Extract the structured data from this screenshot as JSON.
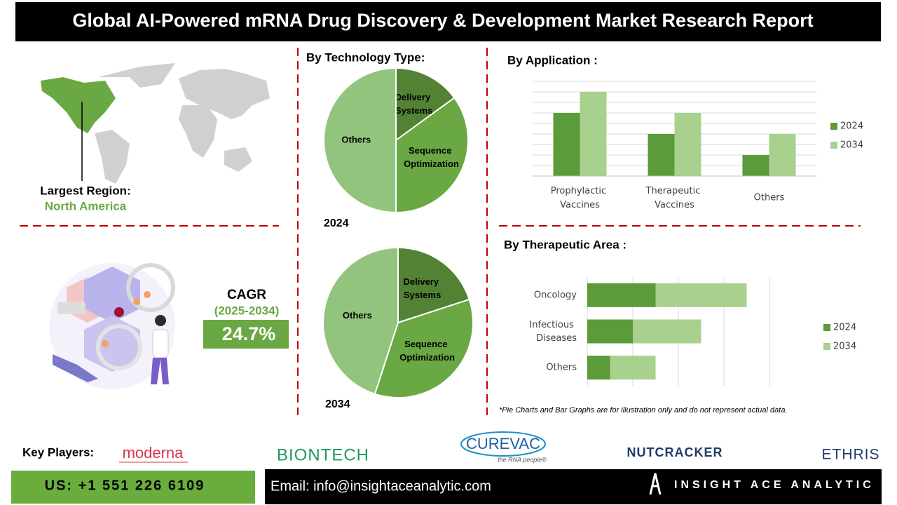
{
  "header": {
    "title": "Global AI-Powered mRNA Drug Discovery & Development Market Research Report"
  },
  "region": {
    "label": "Largest Region:",
    "value": "North America"
  },
  "cagr": {
    "label": "CAGR",
    "period": "(2025-2034)",
    "value": "24.7%"
  },
  "chart_data": [
    {
      "type": "pie",
      "title": "By Technology Type:",
      "caption": "2024",
      "categories": [
        "Delivery Systems",
        "Sequence Optimization",
        "Others"
      ],
      "values": [
        15,
        35,
        50
      ],
      "colors": [
        "#548235",
        "#6aa843",
        "#93c47d"
      ]
    },
    {
      "type": "pie",
      "caption": "2034",
      "categories": [
        "Delivery Systems",
        "Sequence Optimization",
        "Others"
      ],
      "values": [
        20,
        35,
        45
      ],
      "colors": [
        "#548235",
        "#6aa843",
        "#93c47d"
      ]
    },
    {
      "type": "bar",
      "title": "By Application :",
      "categories": [
        "Prophylactic Vaccines",
        "Therapeutic Vaccines",
        "Others"
      ],
      "series": [
        {
          "name": "2024",
          "color": "#5b9b3a",
          "values": [
            6,
            4,
            2
          ]
        },
        {
          "name": "2034",
          "color": "#a9d18e",
          "values": [
            8,
            6,
            4
          ]
        }
      ],
      "ylim": [
        0,
        9
      ],
      "yticks": [
        0,
        1,
        2,
        3,
        4,
        5,
        6,
        7,
        8,
        9
      ],
      "grid": true,
      "legend": "right"
    },
    {
      "type": "hbar",
      "title": "By Therapeutic Area :",
      "stacked": true,
      "categories": [
        "Oncology",
        "Infectious Diseases",
        "Others"
      ],
      "series": [
        {
          "name": "2024",
          "color": "#5b9b3a",
          "values": [
            1.5,
            1,
            0.5
          ]
        },
        {
          "name": "2034",
          "color": "#a9d18e",
          "values": [
            2,
            1.5,
            1
          ]
        }
      ],
      "xlim": [
        0,
        4
      ],
      "xticks": [
        0,
        1,
        2,
        3,
        4
      ],
      "grid": true,
      "legend": "right"
    }
  ],
  "note": "*Pie Charts and Bar Graphs are for illustration only and do not represent actual data.",
  "key_players": {
    "label": "Key Players:",
    "companies": [
      "moderna",
      "BIONTECH",
      "CUREVAC",
      "NUTCRACKER",
      "ETHRIS"
    ],
    "curevac_tagline": "the RNA people®"
  },
  "contact": {
    "phone": "US: +1 551 226 6109",
    "email": "Email: info@insightaceanalytic.com"
  },
  "brand": "INSIGHT ACE ANALYTIC"
}
